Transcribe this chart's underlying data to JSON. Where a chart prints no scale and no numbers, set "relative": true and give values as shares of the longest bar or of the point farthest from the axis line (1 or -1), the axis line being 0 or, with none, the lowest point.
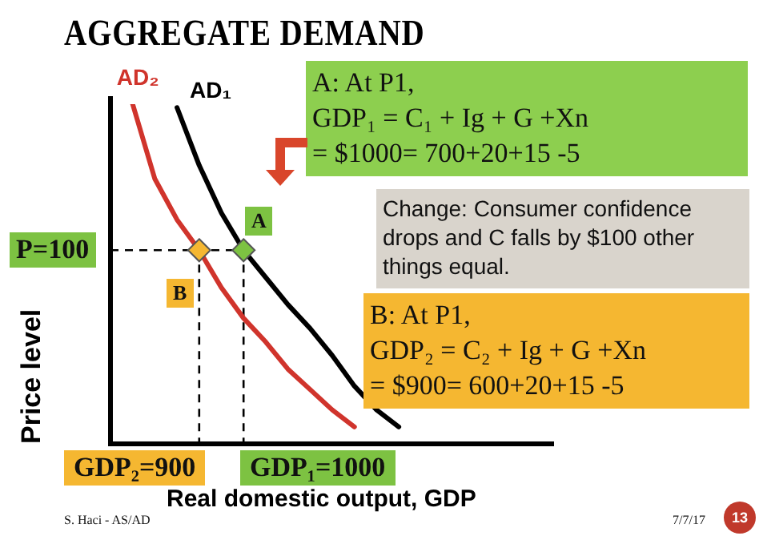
{
  "chart_data": {
    "type": "line",
    "title": "AGGREGATE DEMAND",
    "xlabel": "Real domestic output, GDP",
    "ylabel": "Price level",
    "relative": true,
    "legend": false,
    "categories": [
      null,
      null,
      null,
      null,
      null,
      null,
      null,
      null,
      null,
      null,
      null,
      null,
      null,
      null,
      null,
      null,
      null,
      null,
      null,
      null,
      null
    ],
    "series": [
      {
        "name": "AD₂",
        "color": "#d0342c",
        "values": [
          null,
          1,
          0.78,
          0.66,
          0.57,
          0.46,
          0.37,
          0.3,
          0.22,
          0.16,
          0.1,
          0.05,
          null,
          null,
          null,
          null,
          null,
          null,
          null,
          null,
          null
        ]
      },
      {
        "name": "AD₁",
        "color": "#000000",
        "values": [
          null,
          null,
          null,
          0.99,
          0.82,
          0.68,
          0.57,
          0.49,
          0.41,
          0.34,
          0.26,
          0.17,
          0.1,
          0.05,
          null,
          null,
          null,
          null,
          null,
          null,
          null
        ]
      }
    ],
    "ref_lines": [
      {
        "axis": "y",
        "value": 0.57,
        "line_style": "dashed"
      }
    ],
    "annotations": [
      "A: At P1,\n GDP₁ = C₁  + Ig + G +Xn\n= $1000= 700+20+15   -5",
      "Change:  Consumer confidence drops and C falls by $100 other things equal.",
      "B: At P1,\n GDP₂ = C₂  + Ig + G +Xn\n= $900= 600+20+15   -5",
      "P=100",
      "GDP₂=900",
      "GDP₁=1000",
      "A",
      "B",
      "S. Haci - AS/AD",
      "7/7/17",
      "13"
    ]
  }
}
